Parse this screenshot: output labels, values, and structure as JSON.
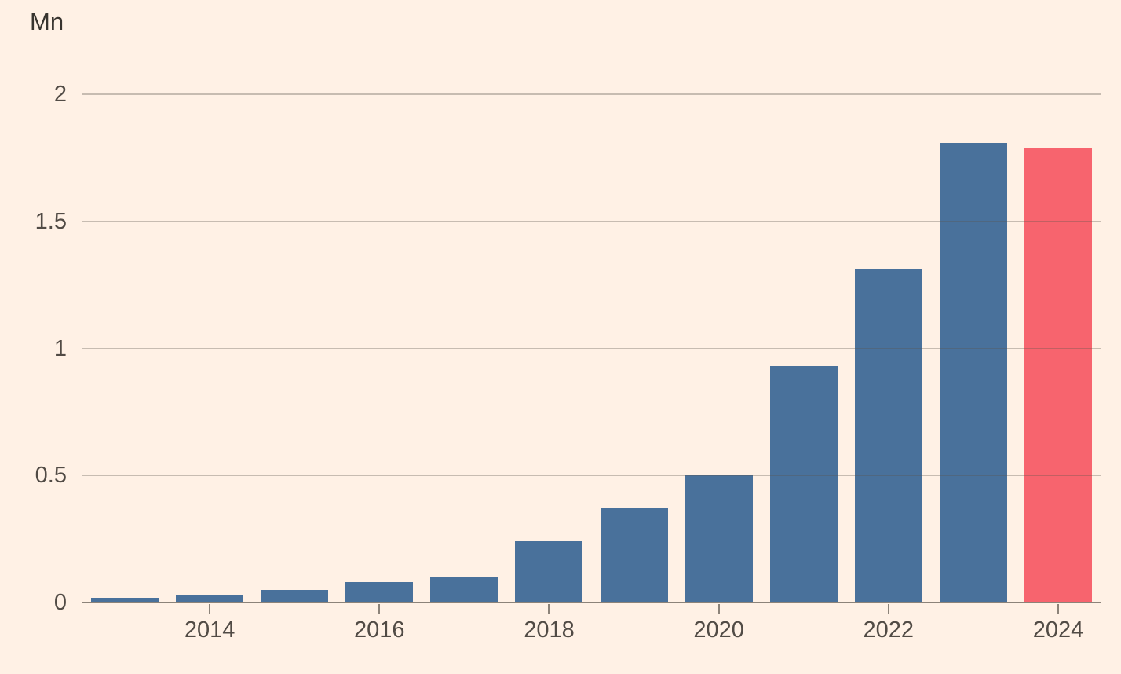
{
  "page": {
    "background": "#FFF1E5"
  },
  "chart_data": {
    "type": "bar",
    "title": "",
    "xlabel": "",
    "ylabel": "Mn",
    "categories": [
      "2013",
      "2014",
      "2015",
      "2016",
      "2017",
      "2018",
      "2019",
      "2020",
      "2021",
      "2022",
      "2023",
      "2024"
    ],
    "values": [
      0.02,
      0.03,
      0.05,
      0.08,
      0.1,
      0.24,
      0.37,
      0.5,
      0.93,
      1.31,
      1.81,
      1.79
    ],
    "highlight_category": "2024",
    "ylim": [
      0,
      2
    ],
    "yticks": [
      0,
      0.5,
      1,
      1.5,
      2
    ],
    "ytick_labels": [
      "0",
      "0.5",
      "1",
      "1.5",
      "2"
    ],
    "xtick_labels": [
      "2014",
      "2016",
      "2018",
      "2020",
      "2022",
      "2024"
    ],
    "grid": "horizontal-over-bars",
    "legend": "none",
    "colors": {
      "bar": "#49719B",
      "highlight_bar": "#F7646E",
      "background": "#FFF1E5",
      "gridline": "#5C554D",
      "axis_line": "#8C8379",
      "tick_mark": "#8C8379",
      "tick_label": "#514B45",
      "unit_label": "#38342F"
    }
  }
}
